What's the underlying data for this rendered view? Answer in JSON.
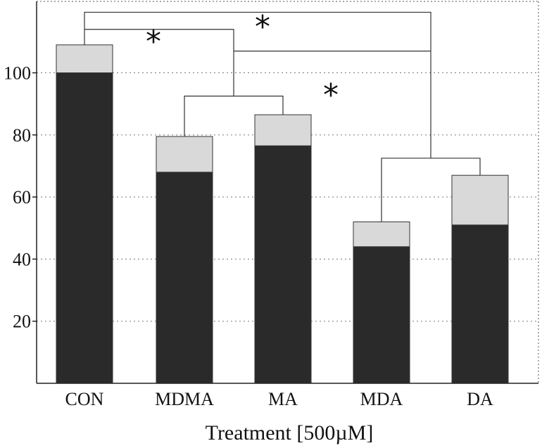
{
  "chart_data": {
    "type": "bar",
    "stacked": true,
    "categories": [
      "CON",
      "MDMA",
      "MA",
      "MDA",
      "DA"
    ],
    "series": [
      {
        "values": [
          100,
          68,
          76.5,
          44,
          51
        ],
        "color": "#2a2a2a"
      },
      {
        "values": [
          9,
          11.5,
          10,
          8,
          16
        ],
        "color": "#d9d9d9"
      }
    ],
    "xlabel": "Treatment [500µM]",
    "ylabel": "",
    "ylim": [
      0,
      123
    ],
    "yticks": [
      20,
      40,
      60,
      80,
      100
    ],
    "grid": true,
    "significance": [
      {
        "from": "CON",
        "to": "MDMA",
        "label": "*"
      },
      {
        "from": "CON",
        "to": "MDA/DA",
        "label": "*"
      },
      {
        "from": "MDMA/MA",
        "to": "MDA/DA",
        "label": "*"
      }
    ]
  }
}
